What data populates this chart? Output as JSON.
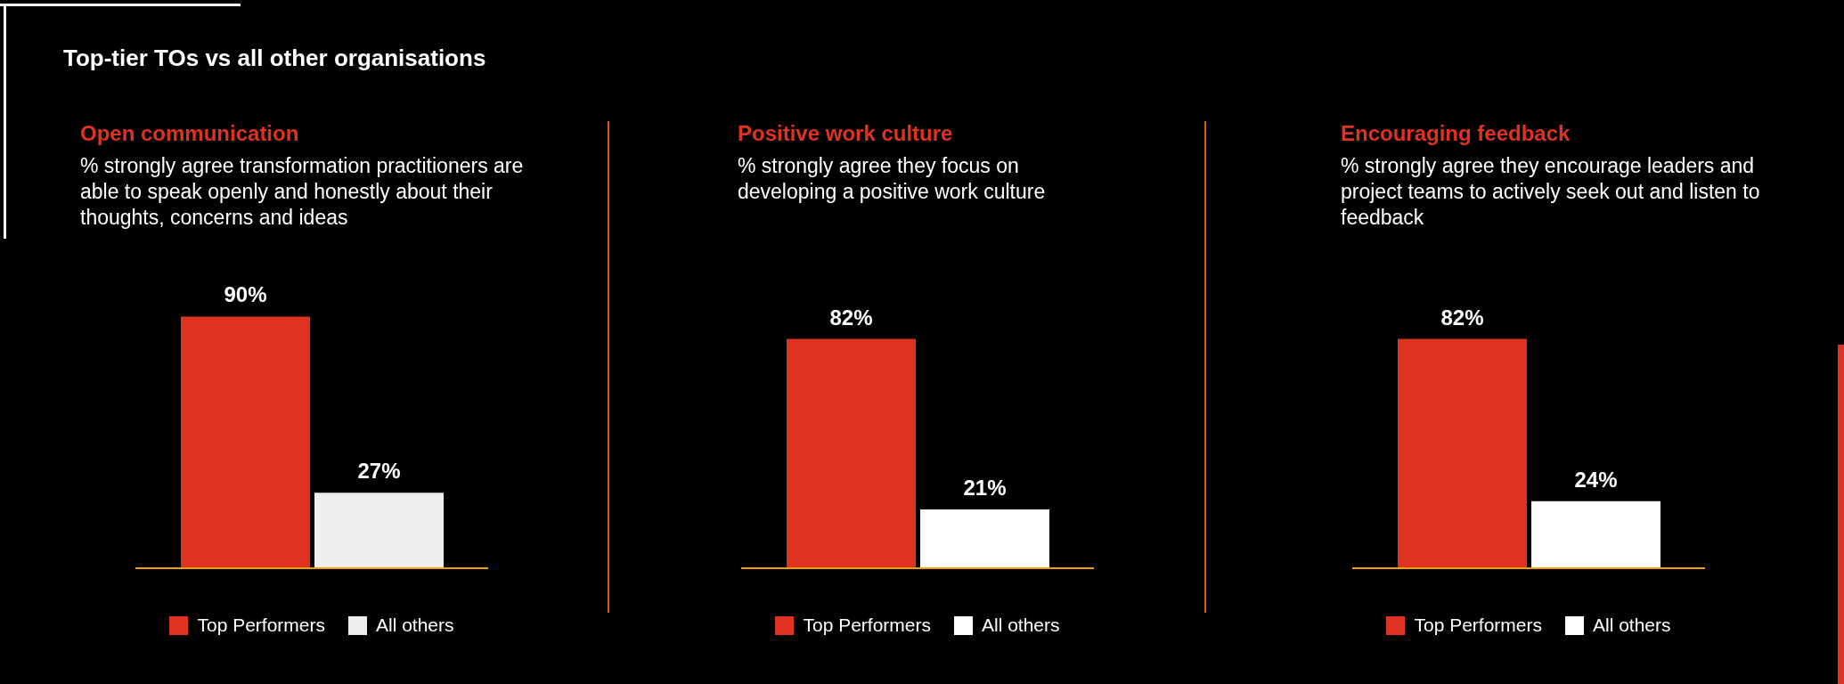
{
  "chart_data": [
    {
      "type": "bar",
      "title": "Open communication",
      "subtitle": "% strongly agree transformation practitioners are able to speak openly and honestly about their thoughts, concerns and ideas",
      "annotations": [
        "Top-tier TOs vs all other organisations"
      ],
      "categories": [
        null
      ],
      "legend": "bottom",
      "series": [
        {
          "name": "Top Performers",
          "color": "#e03220",
          "values": [
            90
          ],
          "value_labels": [
            "90%"
          ]
        },
        {
          "name": "All others",
          "color": "#eeeeee",
          "values": [
            27
          ],
          "value_labels": [
            "27%"
          ]
        }
      ]
    },
    {
      "type": "bar",
      "title": "Positive work culture",
      "subtitle": "% strongly agree they focus on developing a positive work culture",
      "categories": [
        null
      ],
      "legend": "bottom",
      "series": [
        {
          "name": "Top Performers",
          "color": "#e03220",
          "values": [
            82
          ],
          "value_labels": [
            "82%"
          ]
        },
        {
          "name": "All others",
          "color": "#ffffff",
          "values": [
            21
          ],
          "value_labels": [
            "21%"
          ]
        }
      ]
    },
    {
      "type": "bar",
      "title": "Encouraging feedback",
      "subtitle": "% strongly agree they encourage leaders and project teams to actively seek out and listen to feedback",
      "categories": [
        null
      ],
      "legend": "bottom",
      "series": [
        {
          "name": "Top Performers",
          "color": "#e03220",
          "values": [
            82
          ],
          "value_labels": [
            "82%"
          ]
        },
        {
          "name": "All others",
          "color": "#ffffff",
          "values": [
            24
          ],
          "value_labels": [
            "24%"
          ]
        }
      ]
    }
  ]
}
